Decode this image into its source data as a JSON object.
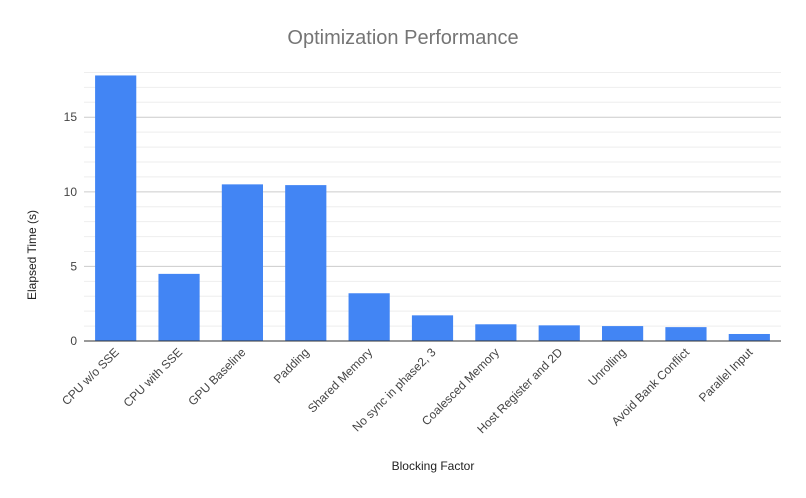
{
  "chart_data": {
    "type": "bar",
    "title": "Optimization Performance",
    "xlabel": "Blocking Factor",
    "ylabel": "Elapsed Time (s)",
    "categories": [
      "CPU w/o SSE",
      "CPU with SSE",
      "GPU Baseline",
      "Padding",
      "Shared Memory",
      "No sync in phase2, 3",
      "Coalesced Memory",
      "Host Register and 2D",
      "Unrolling",
      "Avoid Bank Conflict",
      "Parallel Input"
    ],
    "values": [
      17.8,
      4.5,
      10.5,
      10.45,
      3.2,
      1.72,
      1.12,
      1.05,
      1.0,
      0.93,
      0.47
    ],
    "ylim": [
      0,
      18.3
    ],
    "yticks": [
      0,
      5,
      10,
      15
    ],
    "minor_grid_step": 1,
    "grid": true,
    "legend": "none",
    "bar_color": "#4285f4"
  }
}
